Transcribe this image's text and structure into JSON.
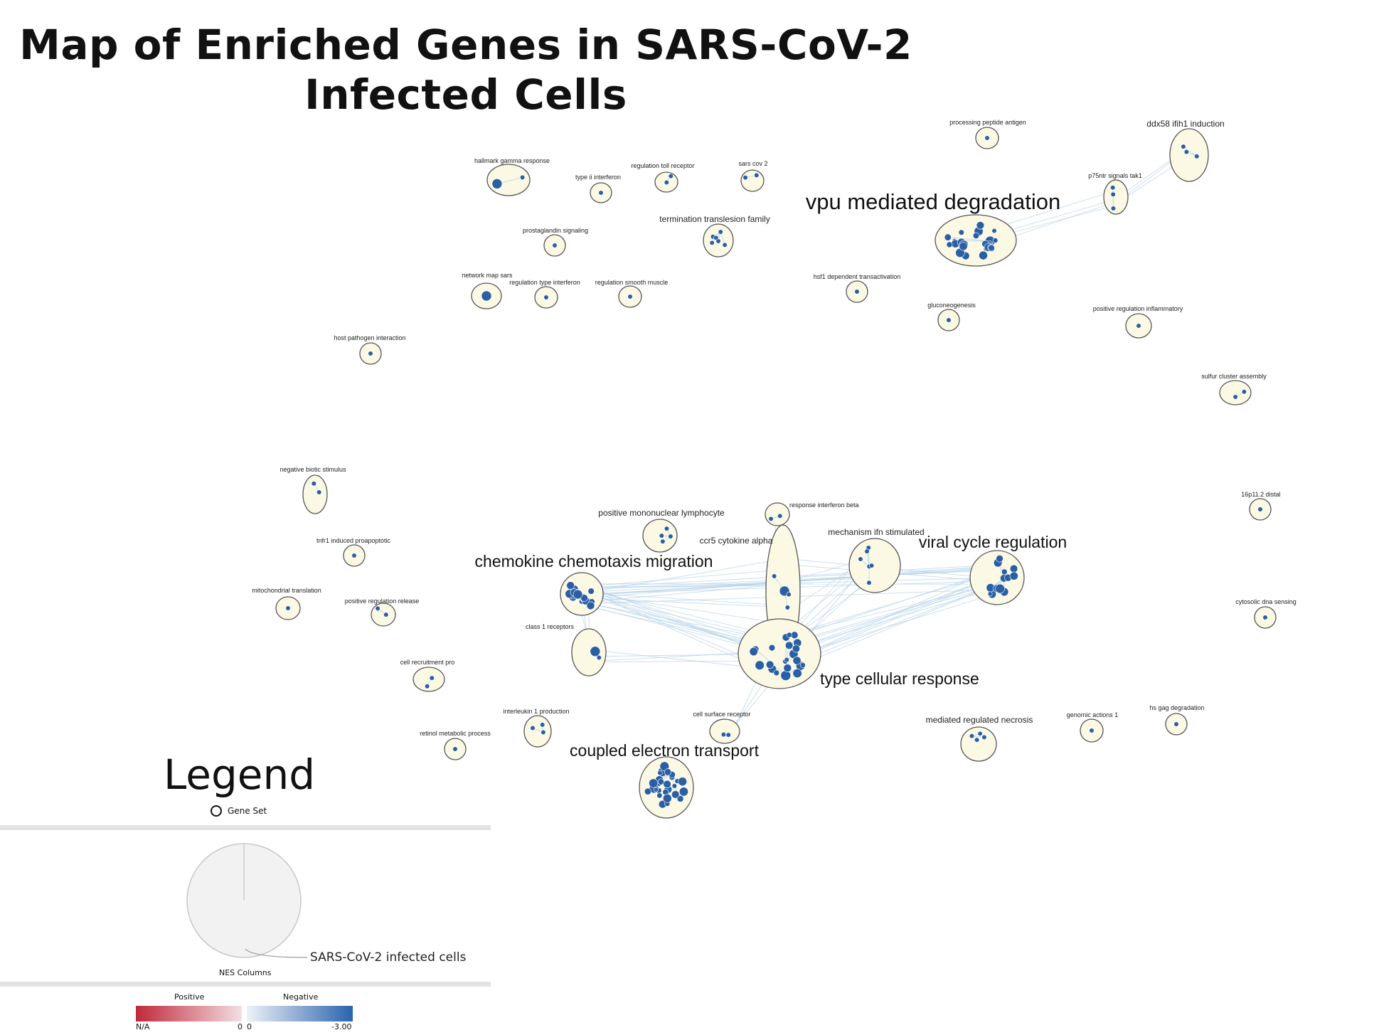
{
  "title": "Map of Enriched Genes in SARS-CoV-2 Infected Cells",
  "clusters": [
    {
      "label": "hallmark gamma response",
      "size": "sm"
    },
    {
      "label": "type ii interferon",
      "size": "sm"
    },
    {
      "label": "regulation toll receptor",
      "size": "sm"
    },
    {
      "label": "sars cov 2",
      "size": "sm"
    },
    {
      "label": "processing peptide antigen",
      "size": "sm"
    },
    {
      "label": "ddx58 ifih1 induction",
      "size": "md"
    },
    {
      "label": "p75ntr signals tak1",
      "size": "sm"
    },
    {
      "label": "vpu mediated degradation",
      "size": "xl"
    },
    {
      "label": "termination translesion family",
      "size": "md"
    },
    {
      "label": "prostaglandin signaling",
      "size": "sm"
    },
    {
      "label": "network map sars",
      "size": "sm"
    },
    {
      "label": "regulation type interferon",
      "size": "sm"
    },
    {
      "label": "regulation smooth muscle",
      "size": "sm"
    },
    {
      "label": "hsf1 dependent transactivation",
      "size": "sm"
    },
    {
      "label": "gluconeogenesis",
      "size": "sm"
    },
    {
      "label": "positive regulation inflammatory",
      "size": "sm"
    },
    {
      "label": "host pathogen interaction",
      "size": "sm"
    },
    {
      "label": "sulfur cluster assembly",
      "size": "sm"
    },
    {
      "label": "negative biotic stimulus",
      "size": "sm"
    },
    {
      "label": "16p11.2 distal",
      "size": "sm"
    },
    {
      "label": "response interferon beta",
      "size": "sm"
    },
    {
      "label": "positive mononuclear lymphocyte",
      "size": "md"
    },
    {
      "label": "ccr5 cytokine alpha",
      "size": "md"
    },
    {
      "label": "mechanism ifn stimulated",
      "size": "md"
    },
    {
      "label": "viral cycle regulation",
      "size": "lg"
    },
    {
      "label": "tnfr1 induced proapoptotic",
      "size": "sm"
    },
    {
      "label": "chemokine chemotaxis migration",
      "size": "lg"
    },
    {
      "label": "mitochondrial translation",
      "size": "sm"
    },
    {
      "label": "positive regulation release",
      "size": "sm"
    },
    {
      "label": "cytosolic dna sensing",
      "size": "sm"
    },
    {
      "label": "class 1 receptors",
      "size": "sm"
    },
    {
      "label": "cell recruitment pro",
      "size": "sm"
    },
    {
      "label": "type cellular response",
      "size": "lg"
    },
    {
      "label": "interleukin 1 production",
      "size": "sm"
    },
    {
      "label": "cell surface receptor",
      "size": "sm"
    },
    {
      "label": "mediated regulated necrosis",
      "size": "md"
    },
    {
      "label": "genomic actions 1",
      "size": "sm"
    },
    {
      "label": "hs gag degradation",
      "size": "sm"
    },
    {
      "label": "retinol metabolic process",
      "size": "sm"
    },
    {
      "label": "coupled electron transport",
      "size": "lg"
    }
  ],
  "legend": {
    "title": "Legend",
    "gene_set_label": "Gene Set",
    "nes_columns_label": "NES Columns",
    "series_label": "SARS-CoV-2 infected cells",
    "positive_label": "Positive",
    "negative_label": "Negative",
    "positive_min": "N/A",
    "positive_max": "0",
    "negative_min": "0",
    "negative_max": "-3.00"
  },
  "colors": {
    "node": "#2b5fa3",
    "cluster_fill": "#fbf9e4",
    "cluster_stroke": "#555555",
    "edge": "#b9d3ea",
    "positive": "#c0283a",
    "negative": "#2a64ad"
  }
}
